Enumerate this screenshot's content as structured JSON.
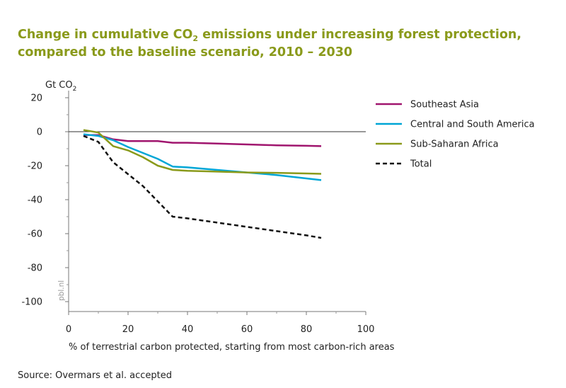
{
  "title": {
    "prefix": "Change in cumulative CO",
    "sub": "2",
    "suffix": " emissions under increasing  forest protection, compared to the baseline scenario, 2010 – 2030"
  },
  "source": "Source: Overmars et al. accepted",
  "watermark": "pbl.nl",
  "chart_data": {
    "type": "line",
    "title": "Change in cumulative CO2 emissions under increasing  forest protection, compared to the baseline scenario, 2010 – 2030",
    "ylabel_main": "Gt CO",
    "ylabel_sub": "2",
    "xlabel": "% of terrestrial carbon protected, starting from most carbon-rich areas",
    "xlim": [
      0,
      100
    ],
    "ylim": [
      -105,
      20
    ],
    "xticks": [
      0,
      20,
      40,
      60,
      80,
      100
    ],
    "xtick_labels": [
      "0",
      "20",
      "40",
      "60",
      "80",
      "100"
    ],
    "yticks": [
      20,
      0,
      -20,
      -40,
      -60,
      -80,
      -100
    ],
    "ytick_labels": [
      "20",
      "0",
      "-20",
      "-40",
      "-60",
      "-80",
      "-100"
    ],
    "zero_line": 0,
    "grid": false,
    "legend_position": "right",
    "series": [
      {
        "name": "Southeast Asia",
        "color": "#a0156e",
        "dash": false,
        "x": [
          5,
          10,
          15,
          20,
          25,
          30,
          35,
          40,
          50,
          60,
          70,
          80,
          85
        ],
        "y": [
          -2,
          -2,
          -4.5,
          -5.5,
          -5.5,
          -5.5,
          -6.5,
          -6.5,
          -7,
          -7.5,
          -8,
          -8.3,
          -8.5
        ]
      },
      {
        "name": "Central and South America",
        "color": "#00a6d6",
        "dash": false,
        "x": [
          5,
          10,
          15,
          20,
          25,
          30,
          35,
          40,
          50,
          60,
          70,
          80,
          85
        ],
        "y": [
          -1.5,
          -2.5,
          -5,
          -9,
          -12.5,
          -16,
          -20.5,
          -21,
          -22.5,
          -24,
          -25.5,
          -27.5,
          -28.5
        ]
      },
      {
        "name": "Sub-Saharan Africa",
        "color": "#8a9a1b",
        "dash": false,
        "x": [
          5,
          10,
          15,
          20,
          25,
          30,
          35,
          40,
          50,
          60,
          70,
          80,
          85
        ],
        "y": [
          1,
          -0.5,
          -8.5,
          -11,
          -15,
          -20,
          -22.5,
          -23,
          -23.5,
          -24,
          -24.2,
          -24.6,
          -24.8
        ]
      },
      {
        "name": "Total",
        "color": "#111111",
        "dash": true,
        "x": [
          5,
          10,
          15,
          20,
          25,
          30,
          35,
          40,
          50,
          60,
          70,
          80,
          85
        ],
        "y": [
          -2.5,
          -6,
          -18,
          -25,
          -32,
          -41,
          -50,
          -51,
          -53.5,
          -56,
          -58.5,
          -61,
          -62.5
        ]
      }
    ]
  }
}
